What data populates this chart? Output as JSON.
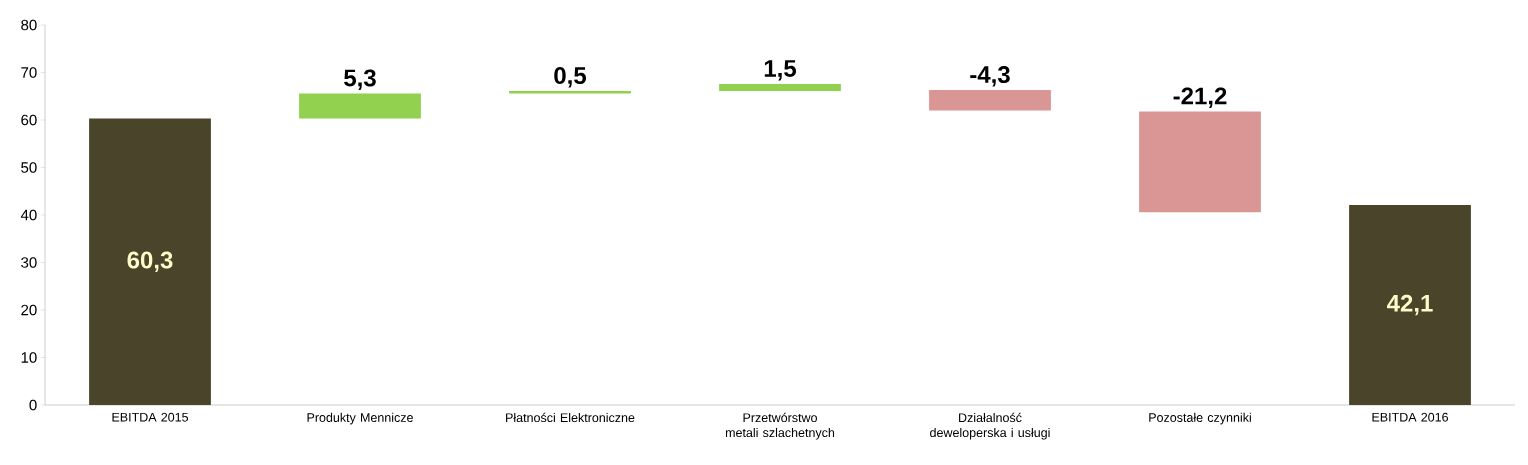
{
  "chart_data": {
    "type": "bar",
    "categories": [
      "EBITDA 2015",
      "Produkty Mennicze",
      "Płatności Elektroniczne",
      "Przetwórstwo metali szlachetnych",
      "Działalność deweloperska i usługi",
      "Pozostałe czynniki",
      "EBITDA 2016"
    ],
    "values": [
      60.3,
      5.3,
      0.5,
      1.5,
      -4.3,
      -21.2,
      42.1
    ],
    "base": [
      0,
      60.3,
      65.6,
      66.1,
      66.3,
      61.8,
      0
    ],
    "colors": [
      "#4a452a",
      "#92d050",
      "#92d050",
      "#92d050",
      "#d99694",
      "#d99694",
      "#4a452a"
    ],
    "value_labels": [
      "60,3",
      "5,3",
      "0,5",
      "1,5",
      "-4,3",
      "-21,2",
      "42,1"
    ],
    "ylim": [
      0,
      80
    ],
    "yticks": [
      0,
      10,
      20,
      30,
      40,
      50,
      60,
      70,
      80
    ],
    "grid": false
  }
}
